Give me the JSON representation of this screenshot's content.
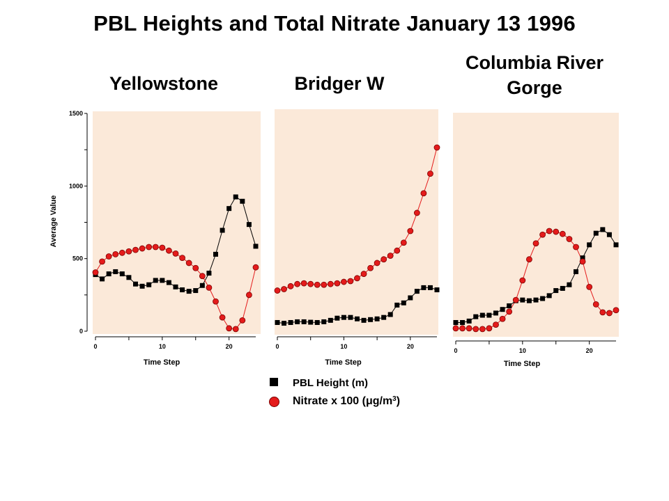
{
  "title": "PBL Heights and Total Nitrate January 13 1996",
  "panels": [
    {
      "site_lines": [
        "Yellowstone"
      ]
    },
    {
      "site_lines": [
        "Bridger W"
      ]
    },
    {
      "site_lines": [
        "Columbia River",
        "Gorge"
      ]
    }
  ],
  "legend": {
    "pbl": "PBL Height (m)",
    "nitrate_prefix": "Nitrate x 100 (",
    "nitrate_unit": "μg/m",
    "nitrate_sup": "3",
    "nitrate_suffix": ")"
  },
  "colors": {
    "panel_bg": "#fbe9d9",
    "nitrate": "#e41b1b",
    "pbl": "#000000"
  },
  "chart_data": [
    {
      "type": "line",
      "xlabel": "Time Step",
      "ylabel": "Average Value",
      "xlim": [
        0,
        24
      ],
      "ylim": [
        0,
        1500
      ],
      "xticks": [
        0,
        10,
        20
      ],
      "yticks": [
        0,
        500,
        1000,
        1500
      ],
      "x": [
        0,
        1,
        2,
        3,
        4,
        5,
        6,
        7,
        8,
        9,
        10,
        11,
        12,
        13,
        14,
        15,
        16,
        17,
        18,
        19,
        20,
        21,
        22,
        23,
        24
      ],
      "series": [
        {
          "name": "PBL Height (m)",
          "marker": "square",
          "values": [
            390,
            360,
            395,
            410,
            395,
            370,
            325,
            310,
            320,
            350,
            350,
            335,
            305,
            285,
            275,
            280,
            315,
            400,
            530,
            695,
            845,
            925,
            895,
            735,
            585
          ]
        },
        {
          "name": "Nitrate x 100 (μg/m3)",
          "marker": "circle",
          "values": [
            405,
            480,
            515,
            530,
            540,
            550,
            560,
            570,
            580,
            580,
            575,
            555,
            535,
            505,
            470,
            435,
            380,
            300,
            205,
            95,
            20,
            15,
            75,
            250,
            440
          ]
        }
      ]
    },
    {
      "type": "line",
      "xlabel": "Time Step",
      "xlim": [
        0,
        24
      ],
      "xticks": [
        0,
        10,
        20
      ],
      "x": [
        0,
        1,
        2,
        3,
        4,
        5,
        6,
        7,
        8,
        9,
        10,
        11,
        12,
        13,
        14,
        15,
        16,
        17,
        18,
        19,
        20,
        21,
        22,
        23,
        24
      ],
      "series": [
        {
          "name": "PBL Height (m)",
          "marker": "square",
          "values": [
            60,
            55,
            60,
            65,
            65,
            62,
            60,
            65,
            75,
            90,
            95,
            95,
            85,
            75,
            80,
            85,
            95,
            115,
            180,
            195,
            230,
            275,
            300,
            300,
            285
          ]
        },
        {
          "name": "Nitrate x 100 (μg/m3)",
          "marker": "circle",
          "values": [
            280,
            290,
            310,
            325,
            330,
            325,
            320,
            320,
            325,
            330,
            340,
            345,
            365,
            395,
            435,
            470,
            495,
            520,
            555,
            610,
            690,
            815,
            950,
            1085,
            1265
          ]
        }
      ]
    },
    {
      "type": "line",
      "xlabel": "Time Step",
      "xlim": [
        0,
        24
      ],
      "xticks": [
        0,
        10,
        20
      ],
      "x": [
        0,
        1,
        2,
        3,
        4,
        5,
        6,
        7,
        8,
        9,
        10,
        11,
        12,
        13,
        14,
        15,
        16,
        17,
        18,
        19,
        20,
        21,
        22,
        23,
        24
      ],
      "series": [
        {
          "name": "PBL Height (m)",
          "marker": "square",
          "values": [
            60,
            60,
            70,
            100,
            110,
            110,
            125,
            150,
            175,
            210,
            215,
            210,
            215,
            225,
            245,
            280,
            295,
            320,
            410,
            505,
            595,
            675,
            700,
            665,
            595
          ]
        },
        {
          "name": "Nitrate x 100 (μg/m3)",
          "marker": "circle",
          "values": [
            20,
            20,
            20,
            15,
            15,
            20,
            45,
            85,
            135,
            215,
            350,
            495,
            605,
            665,
            690,
            685,
            670,
            635,
            580,
            480,
            305,
            185,
            130,
            125,
            145
          ]
        }
      ]
    }
  ]
}
